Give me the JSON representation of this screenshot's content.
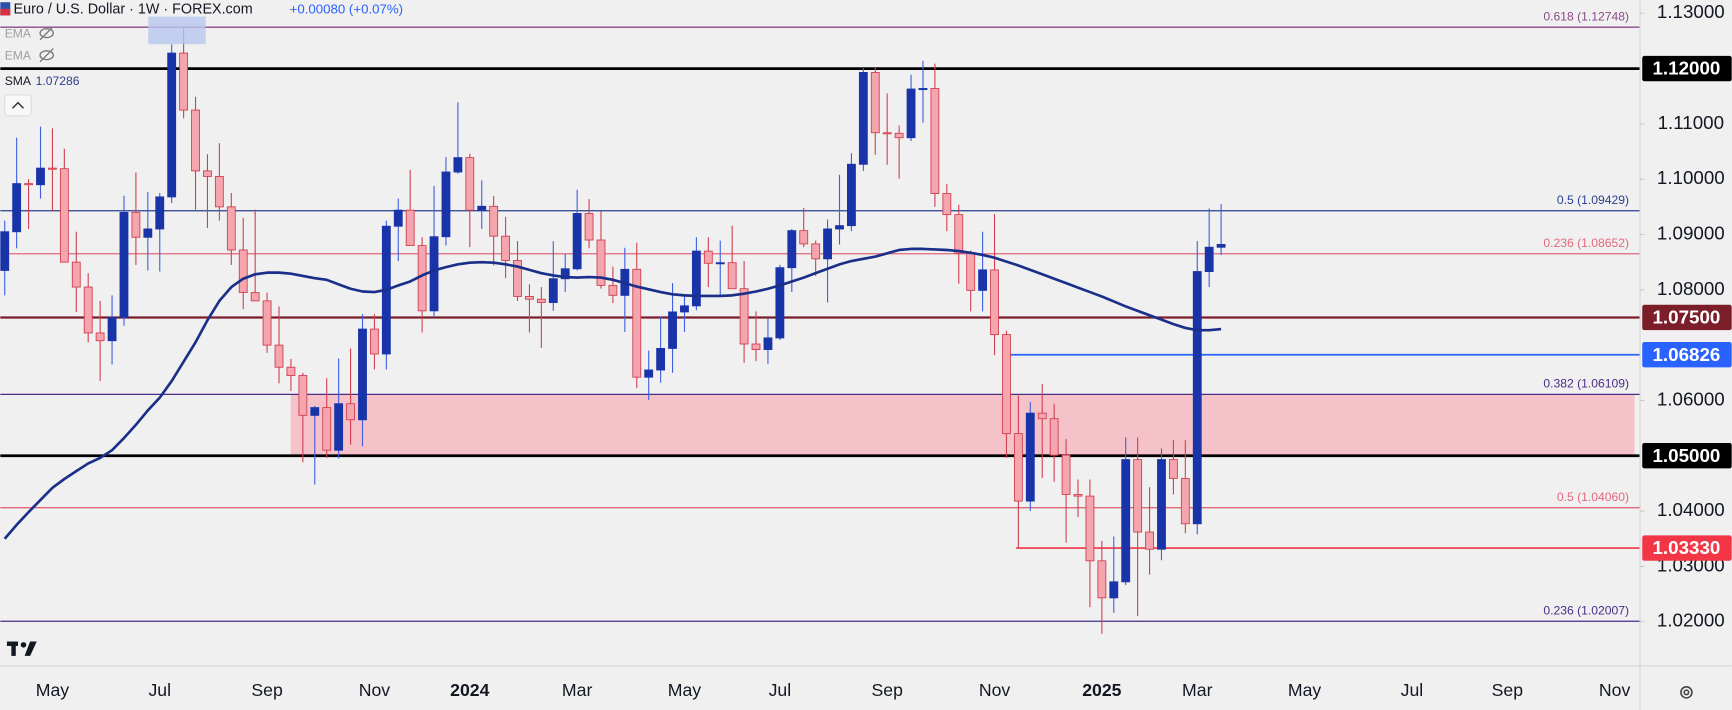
{
  "header": {
    "symbol": "Euro / U.S. Dollar · 1W · FOREX.com",
    "change": "+0.00080 (+0.07%)"
  },
  "hidden_indicators": [
    "EMA",
    "EMA"
  ],
  "chart_data": {
    "type": "candlestick",
    "categories": [
      null,
      null,
      null,
      null,
      "May",
      null,
      null,
      null,
      null,
      null,
      null,
      null,
      null,
      "Jul",
      null,
      null,
      null,
      null,
      null,
      null,
      null,
      null,
      "Sep",
      null,
      null,
      null,
      null,
      null,
      null,
      null,
      null,
      "Nov",
      null,
      null,
      null,
      null,
      null,
      null,
      null,
      "2024",
      null,
      null,
      null,
      null,
      null,
      null,
      null,
      null,
      "Mar",
      null,
      null,
      null,
      null,
      null,
      null,
      null,
      null,
      "May",
      null,
      null,
      null,
      null,
      null,
      null,
      null,
      "Jul",
      null,
      null,
      null,
      null,
      null,
      null,
      null,
      null,
      "Sep",
      null,
      null,
      null,
      null,
      null,
      null,
      null,
      null,
      "Nov",
      null,
      null,
      null,
      null,
      null,
      null,
      null,
      null,
      "2025",
      null,
      null,
      null,
      null,
      null,
      null,
      null,
      "Mar",
      null,
      null,
      null,
      null,
      null,
      null,
      null,
      null,
      "May",
      null,
      null,
      null,
      null,
      null,
      null,
      null,
      null,
      "Jul",
      null,
      null,
      null,
      null,
      null,
      null,
      null,
      "Sep",
      null,
      null,
      null,
      null,
      null,
      null,
      null,
      null,
      "Nov"
    ],
    "open": [
      1.0835,
      1.0905,
      1.0992,
      1.099,
      1.102,
      1.1019,
      1.085,
      1.0805,
      1.0722,
      1.0708,
      1.075,
      1.094,
      1.0895,
      1.091,
      1.0968,
      1.1228,
      1.1125,
      1.1015,
      1.1005,
      1.095,
      1.0872,
      1.0795,
      1.078,
      1.07,
      1.066,
      1.0645,
      1.0573,
      1.0587,
      1.051,
      1.0594,
      1.0565,
      1.0729,
      1.0684,
      1.0915,
      1.0944,
      1.088,
      1.0762,
      1.0896,
      1.1013,
      1.1039,
      1.0944,
      1.0951,
      1.0897,
      1.0853,
      1.0788,
      1.0783,
      1.0777,
      1.082,
      1.0838,
      1.0938,
      1.089,
      1.0808,
      1.079,
      1.0837,
      1.0642,
      1.0655,
      1.0694,
      1.076,
      1.0771,
      1.087,
      1.0848,
      1.0849,
      1.0802,
      1.0702,
      1.0692,
      1.0713,
      1.084,
      1.0907,
      1.0883,
      1.0856,
      1.091,
      1.0916,
      1.1027,
      1.1193,
      1.1084,
      1.1083,
      1.1075,
      1.1163,
      1.1164,
      1.0974,
      1.0936,
      1.0866,
      1.0799,
      1.0836,
      1.0719,
      1.054,
      1.0418,
      1.0577,
      1.0567,
      1.0501,
      1.043,
      1.0427,
      1.031,
      1.0243,
      1.0272,
      1.0493,
      1.0362,
      1.0331,
      1.0493,
      1.0459,
      1.0377,
      1.0833,
      1.0877,
      null,
      null,
      null,
      null,
      null,
      null,
      null,
      null,
      null,
      null,
      null,
      null,
      null,
      null,
      null,
      null,
      null,
      null,
      null,
      null,
      null,
      null,
      null,
      null,
      null,
      null,
      null,
      null,
      null,
      null,
      null,
      null,
      null
    ],
    "high": [
      1.0925,
      1.1075,
      1.1,
      1.1095,
      1.1092,
      1.1055,
      1.0905,
      1.083,
      1.078,
      1.079,
      1.097,
      1.1012,
      1.0977,
      1.0975,
      1.1244,
      1.1276,
      1.1149,
      1.1045,
      1.1065,
      1.0975,
      1.093,
      1.0945,
      1.0795,
      1.077,
      1.0675,
      1.065,
      1.059,
      1.064,
      1.0676,
      1.0694,
      1.0756,
      1.0756,
      1.0925,
      1.0965,
      1.1017,
      1.0895,
      1.0988,
      1.104,
      1.1139,
      1.1046,
      1.0998,
      1.097,
      1.0932,
      1.0888,
      1.081,
      1.0805,
      1.0888,
      1.0865,
      1.0981,
      1.0964,
      1.0942,
      1.0842,
      1.0876,
      1.0885,
      1.069,
      1.0752,
      1.0812,
      1.0791,
      1.0895,
      1.0895,
      1.0889,
      1.0916,
      1.0852,
      1.0761,
      1.0749,
      1.0845,
      1.091,
      1.0948,
      1.0889,
      1.0927,
      1.1008,
      1.1047,
      1.1201,
      1.1202,
      1.1155,
      1.1097,
      1.1189,
      1.1214,
      1.1209,
      1.0991,
      1.0954,
      1.0871,
      1.0905,
      1.0937,
      1.0726,
      1.0609,
      1.0597,
      1.063,
      1.0594,
      1.053,
      1.0457,
      1.0457,
      1.0346,
      1.0354,
      1.0533,
      1.0533,
      1.0443,
      1.0513,
      1.0528,
      1.0528,
      1.0888,
      1.0947,
      1.0955,
      null,
      null,
      null,
      null,
      null,
      null,
      null,
      null,
      null,
      null,
      null,
      null,
      null,
      null,
      null,
      null,
      null,
      null,
      null,
      null,
      null,
      null,
      null,
      null,
      null,
      null,
      null,
      null,
      null,
      null,
      null,
      null,
      null
    ],
    "low": [
      1.079,
      1.0875,
      1.091,
      1.0965,
      1.0942,
      1.085,
      1.076,
      1.0705,
      1.0635,
      1.0665,
      1.0735,
      1.0845,
      1.0835,
      1.0833,
      1.0957,
      1.111,
      1.0945,
      1.0912,
      1.0925,
      1.0845,
      1.0765,
      1.078,
      1.0686,
      1.0631,
      1.0617,
      1.0488,
      1.0448,
      1.0496,
      1.0495,
      1.052,
      1.0517,
      1.0656,
      1.0656,
      1.0852,
      1.088,
      1.0723,
      1.075,
      1.088,
      1.101,
      1.0877,
      1.091,
      1.0844,
      1.0821,
      1.078,
      1.0723,
      1.0695,
      1.0762,
      1.0796,
      1.0835,
      1.0875,
      1.0802,
      1.0776,
      1.0724,
      1.0622,
      1.0601,
      1.0632,
      1.065,
      1.0724,
      1.0763,
      1.0805,
      1.0788,
      1.0802,
      1.0668,
      1.0671,
      1.0666,
      1.0709,
      1.0796,
      1.0877,
      1.0825,
      1.0777,
      1.0882,
      1.0906,
      1.1015,
      1.1044,
      1.1026,
      1.1001,
      1.1069,
      1.1102,
      1.095,
      1.0906,
      1.0811,
      1.0761,
      1.0761,
      1.0682,
      1.0496,
      1.0333,
      1.04,
      1.046,
      1.0453,
      1.0343,
      1.0389,
      1.0226,
      1.0178,
      1.0216,
      1.0266,
      1.021,
      1.0285,
      1.0311,
      1.043,
      1.036,
      1.0358,
      1.0805,
      1.0863,
      null,
      null,
      null,
      null,
      null,
      null,
      null,
      null,
      null,
      null,
      null,
      null,
      null,
      null,
      null,
      null,
      null,
      null,
      null,
      null,
      null,
      null,
      null,
      null,
      null,
      null,
      null,
      null,
      null,
      null,
      null,
      null,
      null
    ],
    "close": [
      1.0905,
      1.0992,
      1.099,
      1.102,
      1.1019,
      1.085,
      1.0805,
      1.0722,
      1.0708,
      1.075,
      1.094,
      1.0895,
      1.091,
      1.0968,
      1.1228,
      1.1125,
      1.1015,
      1.1005,
      1.095,
      1.0872,
      1.0795,
      1.078,
      1.07,
      1.066,
      1.0645,
      1.0573,
      1.0587,
      1.051,
      1.0594,
      1.0565,
      1.0729,
      1.0684,
      1.0915,
      1.0944,
      1.088,
      1.0762,
      1.0896,
      1.1013,
      1.1039,
      1.0944,
      1.0951,
      1.0897,
      1.0853,
      1.0788,
      1.0783,
      1.0777,
      1.082,
      1.0838,
      1.0938,
      1.089,
      1.0808,
      1.079,
      1.0837,
      1.0642,
      1.0655,
      1.0694,
      1.076,
      1.0771,
      1.087,
      1.0848,
      1.0849,
      1.0802,
      1.0702,
      1.0692,
      1.0713,
      1.084,
      1.0907,
      1.0883,
      1.0856,
      1.091,
      1.0916,
      1.1027,
      1.1193,
      1.1084,
      1.1083,
      1.1075,
      1.1163,
      1.1164,
      1.0974,
      1.0936,
      1.0866,
      1.0799,
      1.0836,
      1.0719,
      1.054,
      1.0418,
      1.0577,
      1.0567,
      1.0501,
      1.043,
      1.0427,
      1.031,
      1.0243,
      1.0272,
      1.0493,
      1.0362,
      1.0331,
      1.0493,
      1.0459,
      1.0377,
      1.0833,
      1.0877,
      1.0882,
      null,
      null,
      null,
      null,
      null,
      null,
      null,
      null,
      null,
      null,
      null,
      null,
      null,
      null,
      null,
      null,
      null,
      null,
      null,
      null,
      null,
      null,
      null,
      null,
      null,
      null,
      null,
      null,
      null,
      null,
      null,
      null,
      null
    ],
    "up_color": "#1834a8",
    "down_color": "#f5a5ad",
    "down_edge_color": "#d04050",
    "series": [
      {
        "name": "SMA",
        "value_label": "1.07286",
        "color": "#1a2f8a",
        "values": [
          1.035,
          1.0375,
          1.0398,
          1.042,
          1.0442,
          1.0458,
          1.0472,
          1.0486,
          1.0496,
          1.051,
          1.0532,
          1.0556,
          1.0582,
          1.0605,
          1.0635,
          1.067,
          1.0705,
          1.0745,
          1.078,
          1.0805,
          1.082,
          1.0828,
          1.0831,
          1.0831,
          1.0829,
          1.0825,
          1.0821,
          1.0818,
          1.081,
          1.0802,
          1.0797,
          1.0796,
          1.08,
          1.0808,
          1.0815,
          1.0826,
          1.0835,
          1.0841,
          1.0846,
          1.0849,
          1.085,
          1.0849,
          1.0846,
          1.0842,
          1.0836,
          1.083,
          1.0826,
          1.0823,
          1.0822,
          1.0823,
          1.0822,
          1.0818,
          1.0812,
          1.0806,
          1.0801,
          1.0796,
          1.0792,
          1.079,
          1.0789,
          1.0789,
          1.0789,
          1.079,
          1.0793,
          1.0797,
          1.0802,
          1.0808,
          1.0815,
          1.0822,
          1.083,
          1.0838,
          1.0846,
          1.0852,
          1.0856,
          1.086,
          1.0866,
          1.0872,
          1.0874,
          1.0874,
          1.0873,
          1.0872,
          1.087,
          1.0867,
          1.0863,
          1.0858,
          1.0851,
          1.0844,
          1.0836,
          1.0828,
          1.082,
          1.0812,
          1.0804,
          1.0796,
          1.0788,
          1.0779,
          1.077,
          1.0762,
          1.0754,
          1.0746,
          1.0738,
          1.0731,
          1.0727,
          1.0727,
          1.0729,
          null,
          null,
          null,
          null,
          null,
          null,
          null,
          null,
          null,
          null,
          null,
          null,
          null,
          null,
          null,
          null,
          null,
          null,
          null,
          null,
          null,
          null,
          null,
          null,
          null,
          null,
          null,
          null,
          null,
          null,
          null,
          null,
          null
        ]
      }
    ],
    "ylim": [
      1.01261,
      1.1324
    ],
    "yticks": [
      {
        "value": 1.13,
        "label": "1.13000"
      },
      {
        "value": 1.11,
        "label": "1.11000"
      },
      {
        "value": 1.1,
        "label": "1.10000"
      },
      {
        "value": 1.09,
        "label": "1.09000"
      },
      {
        "value": 1.08,
        "label": "1.08000"
      },
      {
        "value": 1.06,
        "label": "1.06000"
      },
      {
        "value": 1.04,
        "label": "1.04000"
      },
      {
        "value": 1.03,
        "label": "1.03000"
      },
      {
        "value": 1.02,
        "label": "1.02000"
      }
    ],
    "grid": false,
    "levels": [
      {
        "value": 1.12748,
        "label": "0.618 (1.12748)",
        "color": "#8a4a86"
      },
      {
        "value": 1.09429,
        "label": "0.5 (1.09429)",
        "color": "#2a3f8f"
      },
      {
        "value": 1.08652,
        "label": "0.236 (1.08652)",
        "color": "#e2687c"
      },
      {
        "value": 1.06109,
        "label": "0.382 (1.06109)",
        "color": "#4a2d86"
      },
      {
        "value": 1.0406,
        "label": "0.5 (1.04060)",
        "color": "#e2687c"
      },
      {
        "value": 1.02007,
        "label": "0.236 (1.02007)",
        "color": "#4a2d86"
      }
    ],
    "zone_color": "#f4c2c8",
    "price_labels": [
      {
        "value": 1.12,
        "label": "1.12000",
        "color": "#000000"
      },
      {
        "value": 1.075,
        "label": "1.07500",
        "color": "#7b1e2a"
      },
      {
        "value": 1.06826,
        "label": "1.06826",
        "color": "#2962ff"
      },
      {
        "value": 1.05,
        "label": "1.05000",
        "color": "#000000"
      },
      {
        "value": 1.0333,
        "label": "1.03330",
        "color": "#f23645"
      }
    ]
  }
}
